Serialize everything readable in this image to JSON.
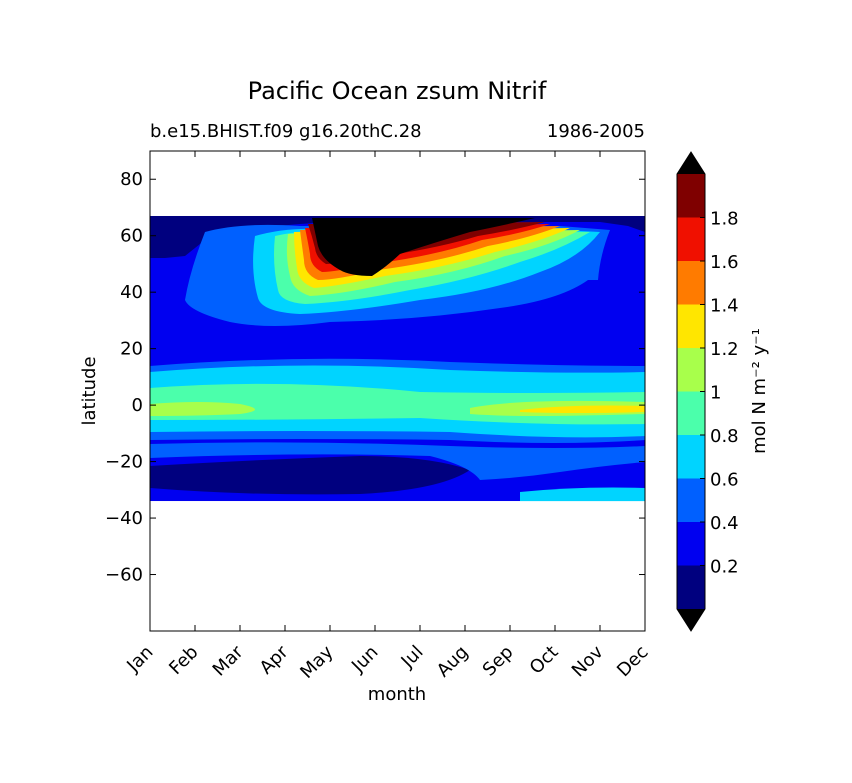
{
  "chart_data": {
    "type": "heatmap",
    "style": "filled-contour",
    "title": "Pacific Ocean zsum Nitrif",
    "subtitle_left": "b.e15.BHIST.f09 g16.20thC.28",
    "subtitle_right": "1986-2005",
    "xlabel": "month",
    "ylabel": "latitude",
    "x_categories": [
      "Jan",
      "Feb",
      "Mar",
      "Apr",
      "May",
      "Jun",
      "Jul",
      "Aug",
      "Sep",
      "Oct",
      "Nov",
      "Dec"
    ],
    "xlim": [
      1,
      12
    ],
    "ylim": [
      -80,
      90
    ],
    "y_ticks": [
      80,
      60,
      40,
      20,
      0,
      -20,
      -40,
      -60
    ],
    "y_tick_labels": [
      "80",
      "60",
      "40",
      "20",
      "0",
      "−20",
      "−40",
      "−60"
    ],
    "data_lat_range": [
      -34,
      67
    ],
    "colorbar": {
      "label": "mol N m⁻² y⁻¹",
      "levels": [
        0,
        0.2,
        0.4,
        0.6,
        0.8,
        1.0,
        1.2,
        1.4,
        1.6,
        1.8,
        2.0
      ],
      "colors": [
        "#00007f",
        "#0000f0",
        "#0060ff",
        "#00d4ff",
        "#4bffab",
        "#a8ff4b",
        "#ffe600",
        "#ff7b00",
        "#f01000",
        "#7f0000"
      ],
      "under_color": "#000000",
      "over_color": "#000000",
      "extend": "both",
      "tick_labels": [
        "0.2",
        "0.4",
        "0.6",
        "0.8",
        "1",
        "1.2",
        "1.4",
        "1.6",
        "1.8"
      ]
    }
  }
}
